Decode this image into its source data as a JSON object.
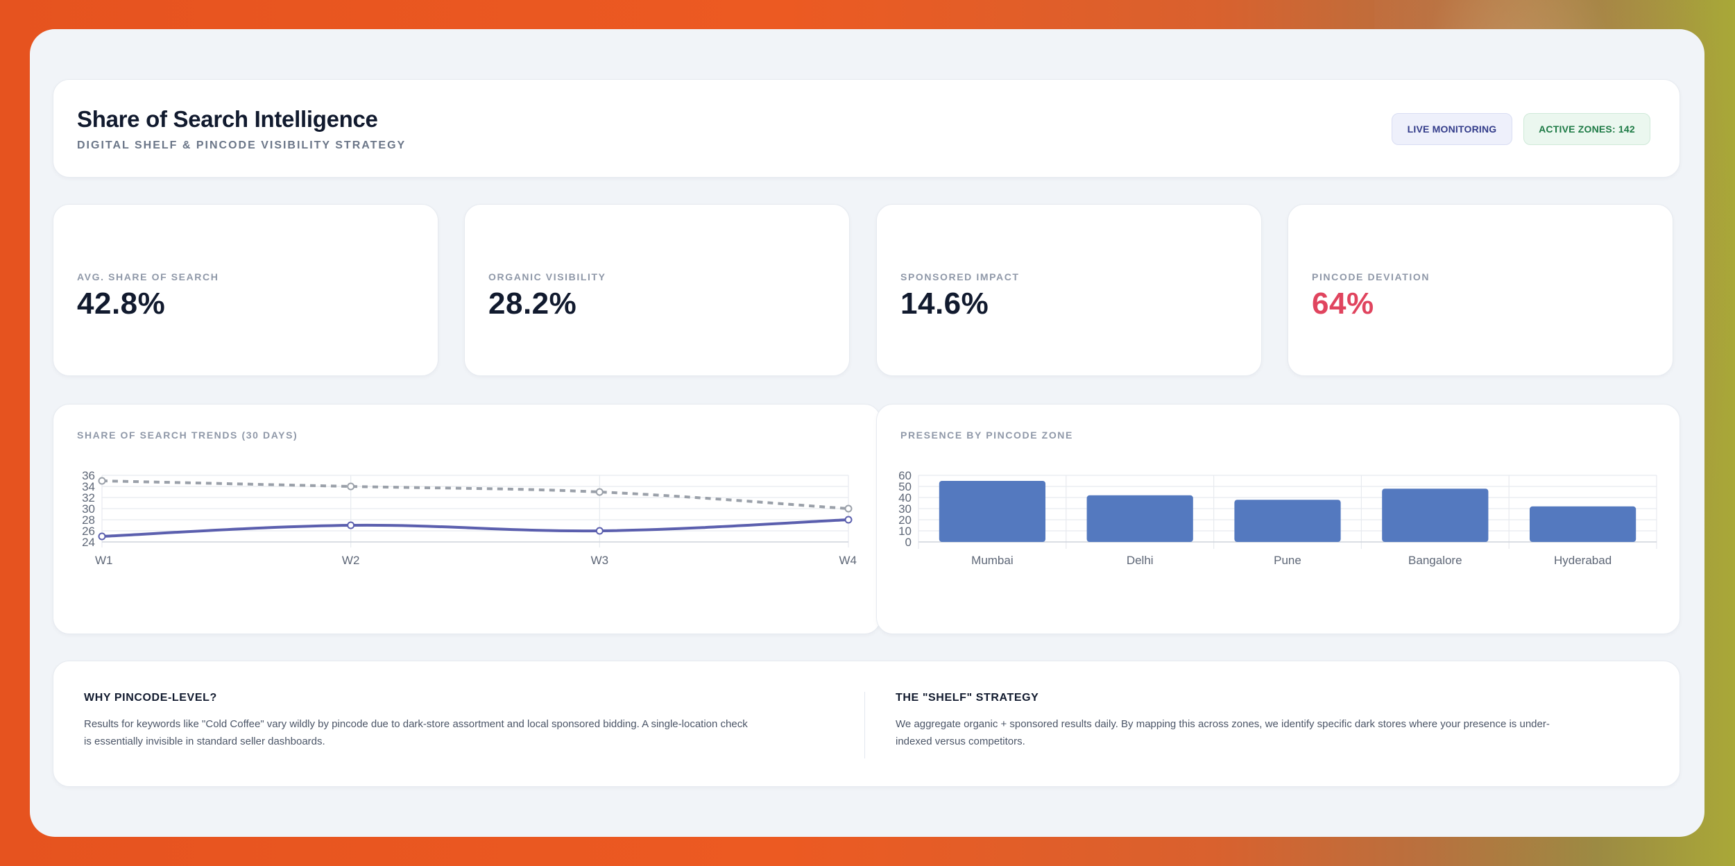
{
  "header": {
    "title": "Share of Search Intelligence",
    "subtitle": "DIGITAL SHELF & PINCODE VISIBILITY STRATEGY",
    "badge_live": "LIVE MONITORING",
    "badge_zones": "ACTIVE ZONES: 142"
  },
  "kpis": [
    {
      "label": "AVG. SHARE OF SEARCH",
      "value": "42.8%"
    },
    {
      "label": "ORGANIC VISIBILITY",
      "value": "28.2%"
    },
    {
      "label": "SPONSORED IMPACT",
      "value": "14.6%"
    },
    {
      "label": "PINCODE DEVIATION",
      "value": "64%",
      "color": "#e0445e"
    }
  ],
  "colors": {
    "accent": "#5b5fae",
    "bar": "#5479bf",
    "dashed_series": "#9aa0a9",
    "alert": "#e0445e"
  },
  "chart_data": [
    {
      "type": "line",
      "title": "SHARE OF SEARCH TRENDS (30 DAYS)",
      "categories": [
        "W1",
        "W2",
        "W3",
        "W4"
      ],
      "series": [
        {
          "values": [
            35,
            34,
            33,
            30
          ],
          "style": "dashed",
          "color": "#9aa0a9"
        },
        {
          "values": [
            25,
            27,
            26,
            28
          ],
          "style": "solid",
          "color": "#5b5fae"
        }
      ],
      "ylim": [
        24,
        36
      ],
      "yticks": [
        24,
        26,
        28,
        30,
        32,
        34,
        36
      ],
      "grid": true
    },
    {
      "type": "bar",
      "title": "PRESENCE BY PINCODE ZONE",
      "categories": [
        "Mumbai",
        "Delhi",
        "Pune",
        "Bangalore",
        "Hyderabad"
      ],
      "values": [
        55,
        42,
        38,
        48,
        32
      ],
      "ylim": [
        0,
        60
      ],
      "yticks": [
        0,
        10,
        20,
        30,
        40,
        50,
        60
      ],
      "grid": true
    }
  ],
  "info": {
    "left": {
      "title": "WHY PINCODE-LEVEL?",
      "line1": "Results for keywords like \"Cold Coffee\" vary wildly by pincode due to dark-store assortment and local sponsored bidding. A single-location check",
      "line2": "is essentially invisible in standard seller dashboards."
    },
    "right": {
      "title": "THE \"SHELF\" STRATEGY",
      "line1": "We aggregate organic + sponsored results daily. By mapping this across zones, we identify specific dark stores where your presence is under-",
      "line2": "indexed versus competitors."
    }
  }
}
